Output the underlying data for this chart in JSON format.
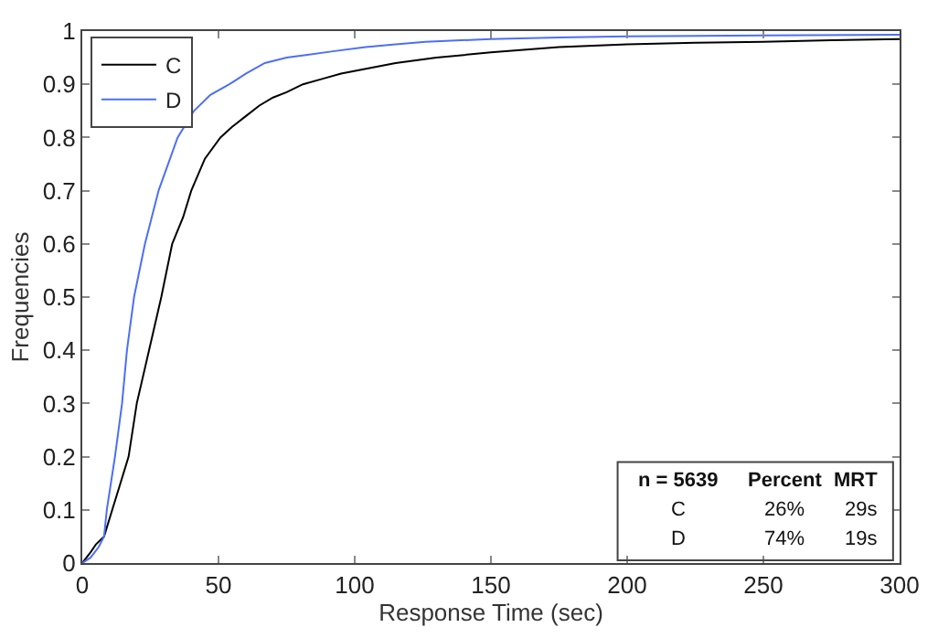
{
  "chart_data": {
    "type": "line",
    "xlabel": "Response Time (sec)",
    "ylabel": "Frequencies",
    "series": [
      {
        "name": "C",
        "color": "#000000",
        "x": [
          0,
          3,
          5,
          8,
          11,
          14,
          17,
          20,
          24.5,
          29,
          33,
          37,
          40,
          45,
          50.7,
          55,
          60,
          65,
          70,
          75,
          81,
          88,
          95,
          105,
          115,
          130,
          150,
          175,
          200,
          225,
          250,
          275,
          300
        ],
        "values": [
          0,
          0.02,
          0.035,
          0.05,
          0.1,
          0.15,
          0.2,
          0.3,
          0.4,
          0.5,
          0.6,
          0.65,
          0.7,
          0.76,
          0.8,
          0.82,
          0.84,
          0.86,
          0.875,
          0.885,
          0.9,
          0.91,
          0.92,
          0.93,
          0.94,
          0.95,
          0.96,
          0.97,
          0.975,
          0.978,
          0.98,
          0.983,
          0.985
        ]
      },
      {
        "name": "D",
        "color": "#4d6ff5",
        "x": [
          0,
          3,
          6,
          8,
          9,
          12,
          14.6,
          16.4,
          19,
          23,
          28,
          35,
          41,
          47,
          54,
          60,
          67,
          75,
          82,
          92,
          104,
          115,
          126,
          150,
          175,
          200,
          250,
          300
        ],
        "values": [
          0,
          0.01,
          0.03,
          0.05,
          0.1,
          0.2,
          0.3,
          0.4,
          0.5,
          0.6,
          0.7,
          0.8,
          0.85,
          0.88,
          0.9,
          0.92,
          0.94,
          0.95,
          0.955,
          0.962,
          0.97,
          0.975,
          0.98,
          0.985,
          0.988,
          0.99,
          0.992,
          0.993
        ]
      }
    ],
    "xlim": [
      0,
      300
    ],
    "xticks": [
      0,
      50,
      100,
      150,
      200,
      250,
      300
    ],
    "ylim": [
      0,
      1
    ],
    "yticks": [
      0,
      0.1,
      0.2,
      0.3,
      0.4,
      0.5,
      0.6,
      0.7,
      0.8,
      0.9,
      1
    ],
    "legend": "top left",
    "line_style": "solid",
    "marker": "none",
    "annotations": [
      "n = 5639",
      "Percent",
      "MRT",
      "C",
      "26%",
      "29s",
      "D",
      "74%",
      "19s"
    ]
  }
}
